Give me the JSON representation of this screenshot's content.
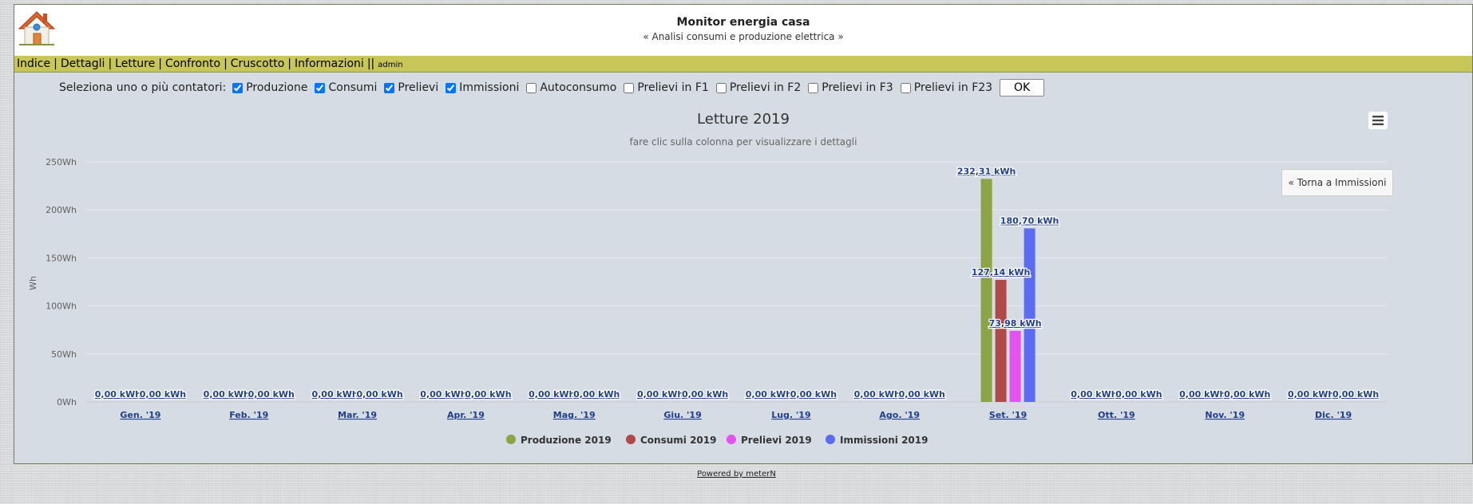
{
  "app": {
    "title": "Monitor energia casa",
    "subtitle": "« Analisi consumi e produzione elettrica »"
  },
  "logo_icon": "house-icon",
  "nav": {
    "items": [
      "Indice",
      "Dettagli",
      "Letture",
      "Confronto",
      "Cruscotto",
      "Informazioni"
    ],
    "separator": "|",
    "double_separator": "||",
    "user": "admin"
  },
  "meter_select": {
    "label": "Seleziona uno o più contatori:",
    "options": [
      {
        "label": "Produzione",
        "checked": true
      },
      {
        "label": "Consumi",
        "checked": true
      },
      {
        "label": "Prelievi",
        "checked": true
      },
      {
        "label": "Immissioni",
        "checked": true
      },
      {
        "label": "Autoconsumo",
        "checked": false
      },
      {
        "label": "Prelievi in F1",
        "checked": false
      },
      {
        "label": "Prelievi in F2",
        "checked": false
      },
      {
        "label": "Prelievi in F3",
        "checked": false
      },
      {
        "label": "Prelievi in F23",
        "checked": false
      }
    ],
    "ok_label": "OK"
  },
  "chart_menu_icon": "hamburger-menu-icon",
  "back_button_label": "« Torna a Immissioni",
  "footer": {
    "powered_by": "Powered by meterN"
  },
  "chart_data": {
    "type": "bar",
    "title": "Letture 2019",
    "subtitle": "fare clic sulla colonna per visualizzare i dettagli",
    "ylabel": "Wh",
    "xlabel": "",
    "ylim": [
      0,
      250
    ],
    "yticks": [
      "0Wh",
      "50Wh",
      "100Wh",
      "150Wh",
      "200Wh",
      "250Wh"
    ],
    "grid": true,
    "legend_position": "bottom-center",
    "categories": [
      "Gen. '19",
      "Feb. '19",
      "Mar. '19",
      "Apr. '19",
      "Mag. '19",
      "Giu. '19",
      "Lug. '19",
      "Ago. '19",
      "Set. '19",
      "Ott. '19",
      "Nov. '19",
      "Dic. '19"
    ],
    "series": [
      {
        "name": "Produzione 2019",
        "color": "#8ba445",
        "values": [
          0,
          0,
          0,
          0,
          0,
          0,
          0,
          0,
          232.31,
          0,
          0,
          0
        ]
      },
      {
        "name": "Consumi 2019",
        "color": "#b04a4a",
        "values": [
          0,
          0,
          0,
          0,
          0,
          0,
          0,
          0,
          127.14,
          0,
          0,
          0
        ]
      },
      {
        "name": "Prelievi 2019",
        "color": "#e353f1",
        "values": [
          0,
          0,
          0,
          0,
          0,
          0,
          0,
          0,
          73.98,
          0,
          0,
          0
        ]
      },
      {
        "name": "Immissioni 2019",
        "color": "#5b6cf3",
        "values": [
          0,
          0,
          0,
          0,
          0,
          0,
          0,
          0,
          180.7,
          0,
          0,
          0
        ]
      }
    ],
    "data_labels": [
      [
        "0,00 kWh",
        "0,00 kWh"
      ],
      [
        "0,00 kWh",
        "0,00 kWh"
      ],
      [
        "0,00 kWh",
        "0,00 kWh"
      ],
      [
        "0,00 kWh",
        "0,00 kWh"
      ],
      [
        "0,00 kWh",
        "0,00 kWh"
      ],
      [
        "0,00 kWh",
        "0,00 kWh"
      ],
      [
        "0,00 kWh",
        "0,00 kWh"
      ],
      [
        "0,00 kWh",
        "0,00 kWh"
      ],
      [
        "232,31 kWh",
        "127,14 kWh",
        "73,98 kWh",
        "180,70 kWh"
      ],
      [
        "0,00 kWh",
        "0,00 kWh"
      ],
      [
        "0,00 kWh",
        "0,00 kWh"
      ],
      [
        "0,00 kWh",
        "0,00 kWh"
      ]
    ]
  }
}
